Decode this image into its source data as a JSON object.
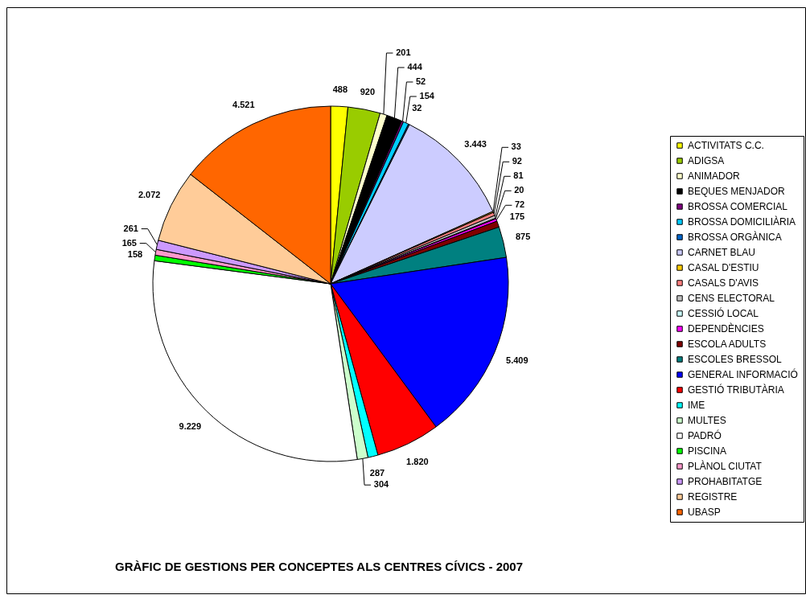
{
  "chart_data": {
    "type": "pie",
    "title": "GRÀFIC DE GESTIONS PER CONCEPTES ALS CENTRES CÍVICS - 2007",
    "categories": [
      "ACTIVITATS C.C.",
      "ADIGSA",
      "ANIMADOR",
      "BEQUES MENJADOR",
      "BROSSA COMERCIAL",
      "BROSSA DOMICILIÀRIA",
      "BROSSA ORGÀNICA",
      "CARNET BLAU",
      "CASAL D'ESTIU",
      "CASALS D'AVIS",
      "CENS ELECTORAL",
      "CESSIÓ LOCAL",
      "DEPENDÈNCIES",
      "ESCOLA ADULTS",
      "ESCOLES BRESSOL",
      "GENERAL INFORMACIÓ",
      "GESTIÓ TRIBUTÀRIA",
      "IME",
      "MULTES",
      "PADRÓ",
      "PISCINA",
      "PLÀNOL CIUTAT",
      "PROHABITATGE",
      "REGISTRE",
      "UBASP"
    ],
    "values": [
      488,
      920,
      201,
      444,
      52,
      154,
      32,
      3443,
      33,
      92,
      81,
      20,
      72,
      175,
      875,
      5409,
      1820,
      287,
      304,
      9229,
      158,
      165,
      261,
      2072,
      4521
    ],
    "value_labels": [
      "488",
      "920",
      "201",
      "444",
      "52",
      "154",
      "32",
      "3.443",
      "33",
      "92",
      "81",
      "20",
      "72",
      "175",
      "875",
      "5.409",
      "1.820",
      "287",
      "304",
      "9.229",
      "158",
      "165",
      "261",
      "2.072",
      "4.521"
    ],
    "colors": [
      "#ffff00",
      "#99cc00",
      "#ffffcc",
      "#000000",
      "#800080",
      "#00ccff",
      "#0066cc",
      "#ccccff",
      "#ffcc00",
      "#ff8080",
      "#c0c0c0",
      "#ccffff",
      "#ff00ff",
      "#800000",
      "#008080",
      "#0000ff",
      "#ff0000",
      "#00ffff",
      "#ccffcc",
      "#ffffff",
      "#00ff00",
      "#ff99cc",
      "#cc99ff",
      "#ffcc99",
      "#ff6600"
    ],
    "legend": "right"
  }
}
